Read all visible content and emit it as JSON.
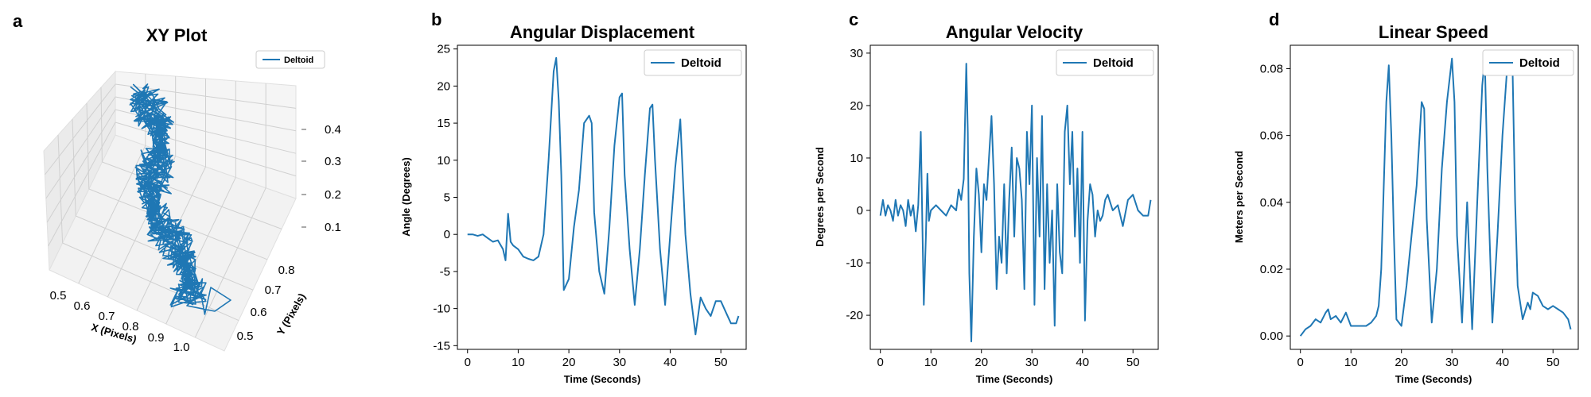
{
  "colors": {
    "series": "#1f77b4",
    "pane": "#f2f2f2",
    "pane_side": "#ebebeb",
    "grid": "#d0d0d0"
  },
  "panels": {
    "a": {
      "letter": "a"
    },
    "b": {
      "letter": "b"
    },
    "c": {
      "letter": "c"
    },
    "d": {
      "letter": "d"
    }
  },
  "chart_data": [
    {
      "id": "a",
      "type": "line3d",
      "title": "XY Plot",
      "xlabel": "X (Pixels)",
      "ylabel": "Y (Pixels)",
      "zlabel": "",
      "xticks": [
        0.5,
        0.6,
        0.7,
        0.8,
        0.9,
        1.0
      ],
      "yticks": [
        0.5,
        0.6,
        0.7,
        0.8
      ],
      "zticks": [
        0.1,
        0.2,
        0.3,
        0.4
      ],
      "xlim": [
        0.45,
        1.05
      ],
      "ylim": [
        0.45,
        0.88
      ],
      "zlim": [
        0.05,
        0.45
      ],
      "legend": "top-right",
      "series": [
        {
          "name": "Deltoid",
          "path_start": [
            0.55,
            0.72,
            0.4
          ],
          "path_end": [
            0.95,
            0.55,
            0.1
          ]
        }
      ]
    },
    {
      "id": "b",
      "type": "line",
      "title": "Angular Displacement",
      "xlabel": "Time (Seconds)",
      "ylabel": "Angle (Degrees)",
      "xlim": [
        -2,
        55
      ],
      "ylim": [
        -15.5,
        25.5
      ],
      "xticks": [
        0,
        10,
        20,
        30,
        40,
        50
      ],
      "yticks": [
        -15,
        -10,
        -5,
        0,
        5,
        10,
        15,
        20,
        25
      ],
      "grid": false,
      "legend": "top-right",
      "series": [
        {
          "name": "Deltoid",
          "x": [
            0,
            1,
            2,
            3,
            4,
            5,
            6,
            7,
            7.5,
            8,
            8.5,
            9,
            10,
            11,
            12,
            13,
            14,
            15,
            16,
            17,
            17.5,
            18,
            18.5,
            19,
            20,
            21,
            22,
            23,
            24,
            24.5,
            25,
            26,
            27,
            28,
            29,
            30,
            30.5,
            31,
            32,
            33,
            34,
            35,
            36,
            36.5,
            37,
            38,
            39,
            40,
            41,
            42,
            43,
            44,
            45,
            46,
            47,
            48,
            49,
            50,
            51,
            52,
            53,
            53.5
          ],
          "y": [
            0,
            0,
            -0.2,
            0,
            -0.5,
            -1,
            -0.8,
            -2,
            -3.5,
            2.8,
            -1,
            -1.5,
            -2,
            -3,
            -3.3,
            -3.5,
            -3,
            0,
            10,
            22,
            23.8,
            18,
            8,
            -7.5,
            -6,
            1,
            6,
            15,
            16,
            15,
            3,
            -5,
            -8,
            1,
            12,
            18.5,
            19,
            8,
            -2,
            -9.5,
            -2,
            8,
            17,
            17.5,
            10,
            -2,
            -9.5,
            0,
            9,
            15.5,
            0,
            -8,
            -13.5,
            -8.5,
            -10,
            -11,
            -9,
            -9,
            -10.5,
            -12,
            -12,
            -11
          ]
        }
      ]
    },
    {
      "id": "c",
      "type": "line",
      "title": "Angular Velocity",
      "xlabel": "Time (Seconds)",
      "ylabel": "Degrees per Second",
      "xlim": [
        -2,
        55
      ],
      "ylim": [
        -26.5,
        31.5
      ],
      "xticks": [
        0,
        10,
        20,
        30,
        40,
        50
      ],
      "yticks": [
        -20,
        -10,
        0,
        10,
        20,
        30
      ],
      "grid": false,
      "legend": "top-right",
      "series": [
        {
          "name": "Deltoid",
          "x": [
            0,
            0.5,
            1,
            1.5,
            2,
            2.5,
            3,
            3.5,
            4,
            4.5,
            5,
            5.5,
            6,
            6.5,
            7,
            7.5,
            8,
            8.3,
            8.6,
            9,
            9.3,
            9.6,
            10,
            11,
            12,
            13,
            14,
            15,
            15.5,
            16,
            16.5,
            17,
            17.3,
            17.6,
            18,
            18.5,
            19,
            19.5,
            20,
            20.5,
            21,
            21.5,
            22,
            22.5,
            23,
            23.5,
            24,
            24.5,
            25,
            25.5,
            26,
            26.5,
            27,
            27.5,
            28,
            28.5,
            29,
            29.5,
            30,
            30.5,
            31,
            31.5,
            32,
            32.5,
            33,
            33.5,
            34,
            34.5,
            35,
            35.5,
            36,
            36.5,
            37,
            37.5,
            38,
            38.5,
            39,
            39.5,
            40,
            40.5,
            41,
            41.5,
            42,
            42.5,
            43,
            43.5,
            44,
            44.5,
            45,
            46,
            47,
            48,
            49,
            50,
            51,
            52,
            53,
            53.5
          ],
          "y": [
            -1,
            2,
            -1,
            1,
            0,
            -2,
            2,
            -1,
            1,
            0,
            -3,
            2,
            -1,
            1,
            -4,
            1,
            15,
            -2,
            -18,
            -5,
            7,
            -2,
            0,
            1,
            0,
            -1,
            1,
            0,
            4,
            2,
            6,
            28,
            15,
            -12,
            -25,
            -5,
            8,
            3,
            -8,
            5,
            2,
            10,
            18,
            5,
            -15,
            -5,
            -10,
            5,
            -12,
            2,
            12,
            -5,
            10,
            8,
            2,
            -15,
            15,
            5,
            20,
            -18,
            10,
            -5,
            18,
            -15,
            5,
            -10,
            0,
            -22,
            5,
            -8,
            -12,
            15,
            20,
            5,
            15,
            -5,
            8,
            -10,
            15,
            -21,
            -2,
            5,
            3,
            -5,
            0,
            -2,
            -1,
            2,
            3,
            0,
            1,
            -3,
            2,
            3,
            0,
            -1,
            -1,
            2
          ]
        }
      ]
    },
    {
      "id": "d",
      "type": "line",
      "title": "Linear Speed",
      "xlabel": "Time (Seconds)",
      "ylabel": "Meters per Second",
      "xlim": [
        -2,
        55
      ],
      "ylim": [
        -0.004,
        0.087
      ],
      "xticks": [
        0,
        10,
        20,
        30,
        40,
        50
      ],
      "yticks": [
        0.0,
        0.02,
        0.04,
        0.06,
        0.08
      ],
      "ytick_labels": [
        "0.00",
        "0.02",
        "0.04",
        "0.06",
        "0.08"
      ],
      "grid": false,
      "legend": "top-right",
      "series": [
        {
          "name": "Deltoid",
          "x": [
            0,
            1,
            2,
            3,
            4,
            5,
            5.5,
            6,
            7,
            8,
            9,
            10,
            11,
            12,
            13,
            14,
            15,
            15.5,
            16,
            17,
            17.5,
            18,
            18.5,
            19,
            20,
            21,
            22,
            23,
            24,
            24.5,
            25,
            26,
            27,
            28,
            29,
            30,
            30.5,
            31,
            32,
            33,
            34,
            35,
            36,
            36.5,
            37,
            38,
            39,
            40,
            41,
            42,
            42.5,
            43,
            44,
            45,
            45.5,
            46,
            47,
            48,
            49,
            50,
            51,
            52,
            53,
            53.5
          ],
          "y": [
            0,
            0.002,
            0.003,
            0.005,
            0.004,
            0.007,
            0.008,
            0.005,
            0.006,
            0.004,
            0.007,
            0.003,
            0.003,
            0.003,
            0.003,
            0.004,
            0.006,
            0.009,
            0.02,
            0.07,
            0.081,
            0.06,
            0.03,
            0.005,
            0.003,
            0.015,
            0.03,
            0.045,
            0.07,
            0.068,
            0.035,
            0.004,
            0.02,
            0.05,
            0.07,
            0.083,
            0.07,
            0.03,
            0.004,
            0.04,
            0.002,
            0.04,
            0.075,
            0.083,
            0.05,
            0.004,
            0.03,
            0.06,
            0.082,
            0.08,
            0.04,
            0.015,
            0.005,
            0.01,
            0.008,
            0.013,
            0.012,
            0.009,
            0.008,
            0.009,
            0.008,
            0.007,
            0.005,
            0.002
          ]
        }
      ]
    }
  ]
}
